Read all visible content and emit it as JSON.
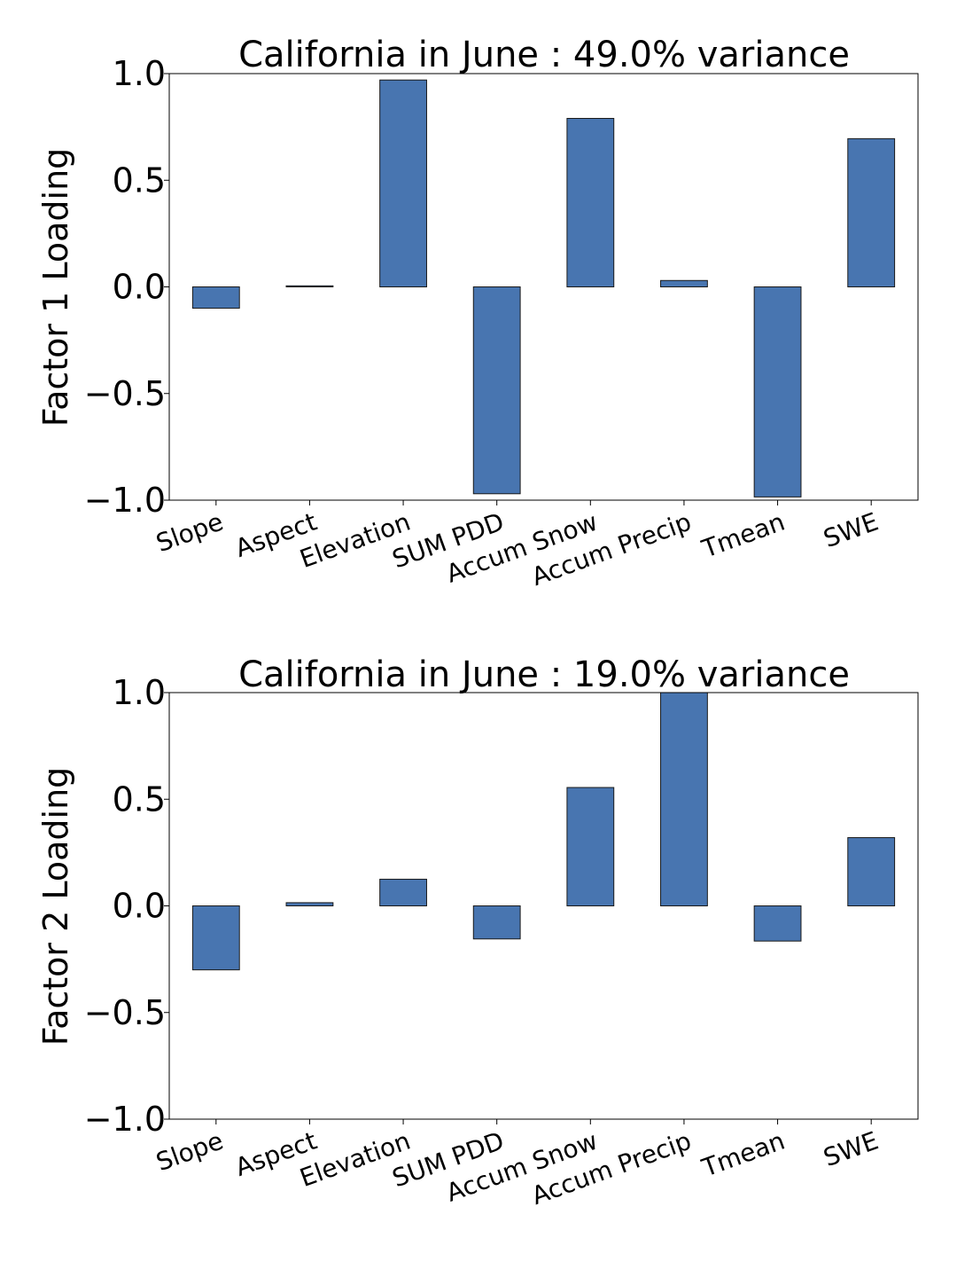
{
  "colors": {
    "bar": "#4875b0"
  },
  "chart_data": [
    {
      "type": "bar",
      "title": "California in June : 49.0% variance",
      "xlabel": "",
      "ylabel": "Factor 1 Loading",
      "ylim": [
        -1.0,
        1.0
      ],
      "yticks": [
        "1.0",
        "0.5",
        "0.0",
        "−0.5",
        "−1.0"
      ],
      "ytick_values": [
        1.0,
        0.5,
        0.0,
        -0.5,
        -1.0
      ],
      "categories": [
        "Slope",
        "Aspect",
        "Elevation",
        "SUM PDD",
        "Accum Snow",
        "Accum Precip",
        "Tmean",
        "SWE"
      ],
      "values": [
        -0.1,
        0.005,
        0.97,
        -0.97,
        0.79,
        0.03,
        -0.985,
        0.695
      ],
      "grid": false
    },
    {
      "type": "bar",
      "title": "California in June : 19.0% variance",
      "xlabel": "",
      "ylabel": "Factor 2 Loading",
      "ylim": [
        -1.0,
        1.0
      ],
      "yticks": [
        "1.0",
        "0.5",
        "0.0",
        "−0.5",
        "−1.0"
      ],
      "ytick_values": [
        1.0,
        0.5,
        0.0,
        -0.5,
        -1.0
      ],
      "categories": [
        "Slope",
        "Aspect",
        "Elevation",
        "SUM PDD",
        "Accum Snow",
        "Accum Precip",
        "Tmean",
        "SWE"
      ],
      "values": [
        -0.3,
        0.015,
        0.125,
        -0.155,
        0.555,
        1.0,
        -0.165,
        0.32
      ],
      "grid": false
    }
  ]
}
